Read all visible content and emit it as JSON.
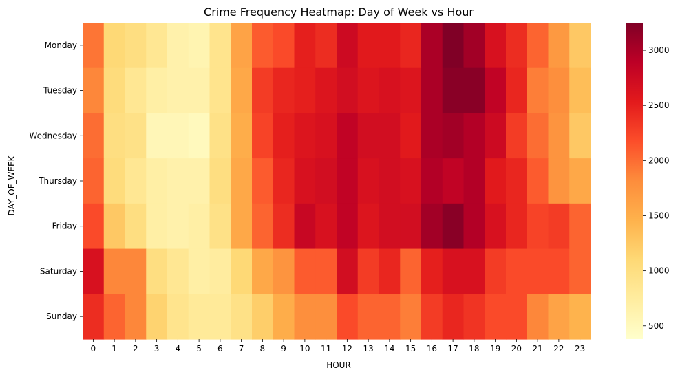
{
  "chart_data": {
    "type": "heatmap",
    "title": "Crime Frequency Heatmap: Day of Week vs Hour",
    "xlabel": "HOUR",
    "ylabel": "DAY_OF_WEEK",
    "x_categories": [
      "0",
      "1",
      "2",
      "3",
      "4",
      "5",
      "6",
      "7",
      "8",
      "9",
      "10",
      "11",
      "12",
      "13",
      "14",
      "15",
      "16",
      "17",
      "18",
      "19",
      "20",
      "21",
      "22",
      "23"
    ],
    "y_categories": [
      "Monday",
      "Tuesday",
      "Wednesday",
      "Thursday",
      "Friday",
      "Saturday",
      "Sunday"
    ],
    "colorbar": {
      "colormap": "YlOrRd",
      "vmin": 380,
      "vmax": 3250,
      "ticks": [
        500,
        1000,
        1500,
        2000,
        2500,
        3000
      ]
    },
    "values": [
      [
        1950,
        1100,
        1000,
        850,
        650,
        600,
        900,
        1600,
        2100,
        2200,
        2500,
        2400,
        2750,
        2550,
        2550,
        2450,
        3000,
        3250,
        3050,
        2650,
        2400,
        2050,
        1700,
        1250
      ],
      [
        1850,
        1050,
        850,
        700,
        650,
        650,
        900,
        1550,
        2300,
        2450,
        2500,
        2600,
        2700,
        2600,
        2650,
        2600,
        3000,
        3200,
        3200,
        2850,
        2450,
        1900,
        1800,
        1350
      ],
      [
        2000,
        1000,
        950,
        550,
        550,
        500,
        950,
        1500,
        2250,
        2500,
        2600,
        2650,
        2850,
        2700,
        2700,
        2550,
        3000,
        3050,
        2950,
        2750,
        2300,
        2000,
        1750,
        1250
      ],
      [
        2050,
        1050,
        850,
        700,
        650,
        650,
        1000,
        1550,
        2100,
        2450,
        2650,
        2700,
        2850,
        2650,
        2700,
        2650,
        2950,
        2850,
        2950,
        2550,
        2450,
        2100,
        1750,
        1550
      ],
      [
        2200,
        1250,
        1000,
        700,
        650,
        700,
        950,
        1550,
        2050,
        2400,
        2800,
        2650,
        2850,
        2600,
        2700,
        2700,
        3050,
        3200,
        2950,
        2650,
        2450,
        2250,
        2300,
        2050
      ],
      [
        2650,
        1850,
        1850,
        1000,
        850,
        700,
        750,
        1100,
        1550,
        1750,
        2100,
        2100,
        2700,
        2300,
        2450,
        2050,
        2500,
        2650,
        2650,
        2300,
        2200,
        2200,
        2200,
        2050
      ],
      [
        2400,
        2050,
        1850,
        1150,
        900,
        800,
        800,
        950,
        1200,
        1500,
        1800,
        1800,
        2200,
        2050,
        2050,
        1900,
        2300,
        2450,
        2350,
        2200,
        2200,
        1850,
        1600,
        1450
      ]
    ]
  }
}
